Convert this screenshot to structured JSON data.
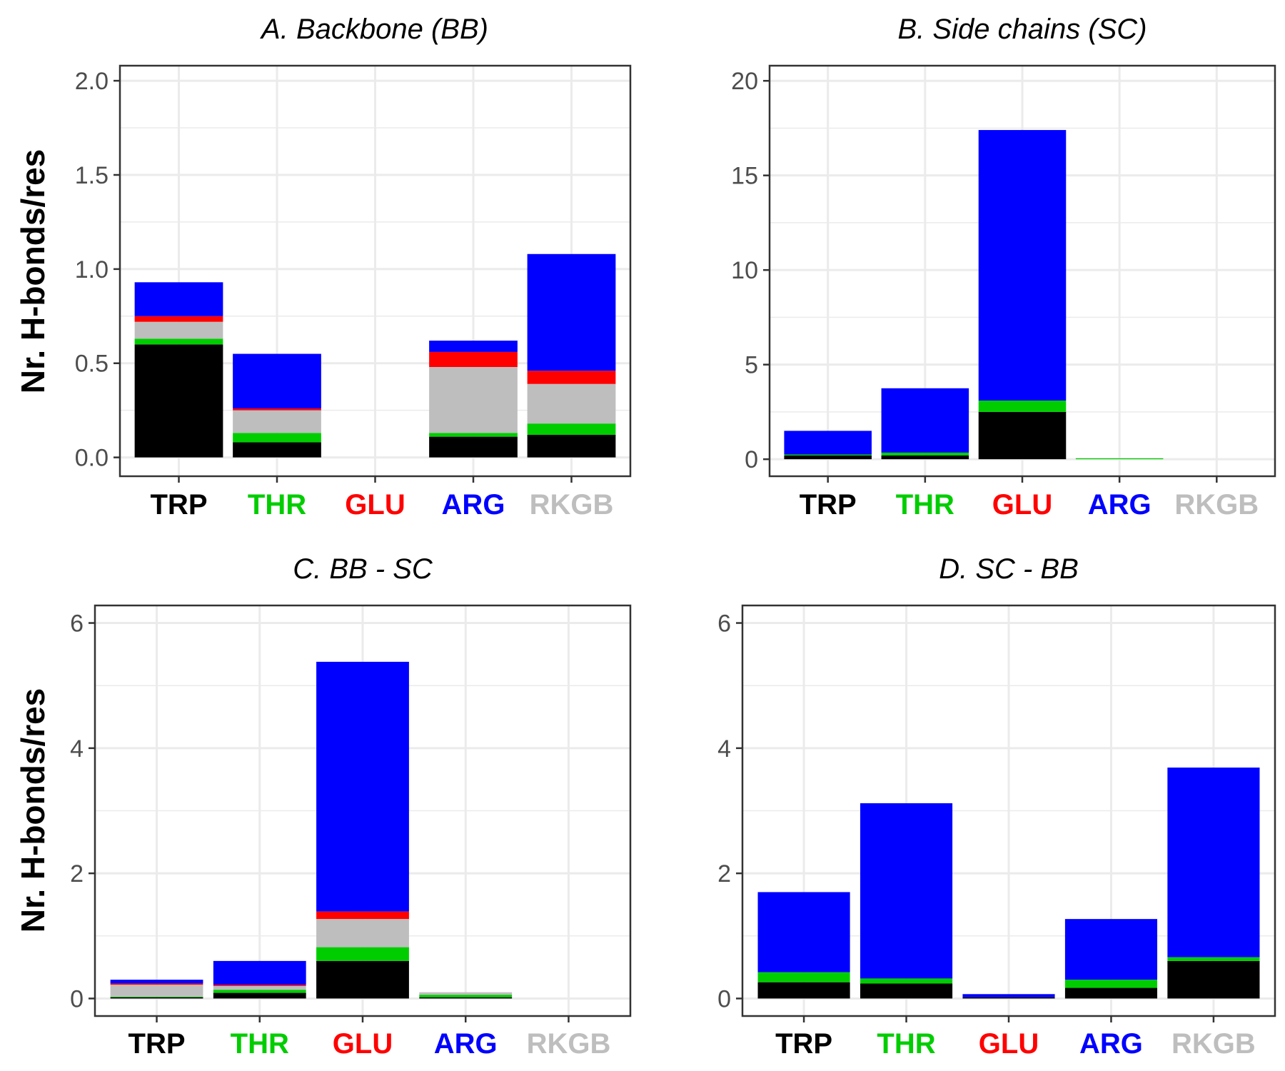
{
  "colors": {
    "TRP": "#000000",
    "THR": "#00cd00",
    "GLU": "#ff0000",
    "ARG": "#0000ff",
    "RKGB": "#bebebe",
    "grid": "#ebebeb",
    "panel_border": "#333333",
    "tick_text": "#4d4d4d"
  },
  "stack_order_bottom_to_top": [
    "TRP",
    "THR",
    "RKGB",
    "GLU",
    "ARG"
  ],
  "chart_data": [
    {
      "type": "bar",
      "title": "A. Backbone (BB)",
      "xlabel": "",
      "ylabel": "Nr. H-bonds/res",
      "ylim": [
        -0.1,
        2.08
      ],
      "yticks": [
        "0.0",
        "0.5",
        "1.0",
        "1.5",
        "2.0"
      ],
      "ytick_values": [
        0,
        0.5,
        1.0,
        1.5,
        2.0
      ],
      "categories": [
        "TRP",
        "THR",
        "GLU",
        "ARG",
        "RKGB"
      ],
      "series": [
        {
          "name": "TRP",
          "values": [
            0.6,
            0.08,
            0.0,
            0.11,
            0.12
          ]
        },
        {
          "name": "THR",
          "values": [
            0.03,
            0.05,
            0.0,
            0.02,
            0.06
          ]
        },
        {
          "name": "RKGB",
          "values": [
            0.09,
            0.12,
            0.0,
            0.35,
            0.21
          ]
        },
        {
          "name": "GLU",
          "values": [
            0.03,
            0.01,
            0.0,
            0.08,
            0.07
          ]
        },
        {
          "name": "ARG",
          "values": [
            0.18,
            0.29,
            0.0,
            0.06,
            0.62
          ]
        }
      ]
    },
    {
      "type": "bar",
      "title": "B. Side chains (SC)",
      "xlabel": "",
      "ylabel": "",
      "ylim": [
        -0.9,
        20.8
      ],
      "yticks": [
        "0",
        "5",
        "10",
        "15",
        "20"
      ],
      "ytick_values": [
        0,
        5,
        10,
        15,
        20
      ],
      "categories": [
        "TRP",
        "THR",
        "GLU",
        "ARG",
        "RKGB"
      ],
      "series": [
        {
          "name": "TRP",
          "values": [
            0.2,
            0.2,
            2.5,
            0.0,
            0.0
          ]
        },
        {
          "name": "THR",
          "values": [
            0.05,
            0.15,
            0.6,
            0.05,
            0.0
          ]
        },
        {
          "name": "RKGB",
          "values": [
            0.0,
            0.0,
            0.0,
            0.0,
            0.0
          ]
        },
        {
          "name": "GLU",
          "values": [
            0.0,
            0.0,
            0.0,
            0.0,
            0.0
          ]
        },
        {
          "name": "ARG",
          "values": [
            1.25,
            3.4,
            14.3,
            0.0,
            0.0
          ]
        }
      ]
    },
    {
      "type": "bar",
      "title": "C. BB - SC",
      "xlabel": "",
      "ylabel": "Nr. H-bonds/res",
      "ylim": [
        -0.28,
        6.28
      ],
      "yticks": [
        "0",
        "2",
        "4",
        "6"
      ],
      "ytick_values": [
        0,
        2,
        4,
        6
      ],
      "categories": [
        "TRP",
        "THR",
        "GLU",
        "ARG",
        "RKGB"
      ],
      "series": [
        {
          "name": "TRP",
          "values": [
            0.02,
            0.09,
            0.6,
            0.02,
            0.0
          ]
        },
        {
          "name": "THR",
          "values": [
            0.01,
            0.05,
            0.22,
            0.04,
            0.0
          ]
        },
        {
          "name": "RKGB",
          "values": [
            0.19,
            0.06,
            0.45,
            0.04,
            0.0
          ]
        },
        {
          "name": "GLU",
          "values": [
            0.02,
            0.02,
            0.12,
            0.0,
            0.0
          ]
        },
        {
          "name": "ARG",
          "values": [
            0.06,
            0.38,
            3.99,
            0.0,
            0.0
          ]
        }
      ]
    },
    {
      "type": "bar",
      "title": "D. SC - BB",
      "xlabel": "",
      "ylabel": "",
      "ylim": [
        -0.28,
        6.28
      ],
      "yticks": [
        "0",
        "2",
        "4",
        "6"
      ],
      "ytick_values": [
        0,
        2,
        4,
        6
      ],
      "categories": [
        "TRP",
        "THR",
        "GLU",
        "ARG",
        "RKGB"
      ],
      "series": [
        {
          "name": "TRP",
          "values": [
            0.26,
            0.24,
            0.02,
            0.17,
            0.6
          ]
        },
        {
          "name": "THR",
          "values": [
            0.16,
            0.08,
            0.0,
            0.13,
            0.06
          ]
        },
        {
          "name": "RKGB",
          "values": [
            0.0,
            0.0,
            0.0,
            0.0,
            0.0
          ]
        },
        {
          "name": "GLU",
          "values": [
            0.0,
            0.0,
            0.0,
            0.0,
            0.0
          ]
        },
        {
          "name": "ARG",
          "values": [
            1.28,
            2.8,
            0.05,
            0.97,
            3.03
          ]
        }
      ]
    }
  ]
}
